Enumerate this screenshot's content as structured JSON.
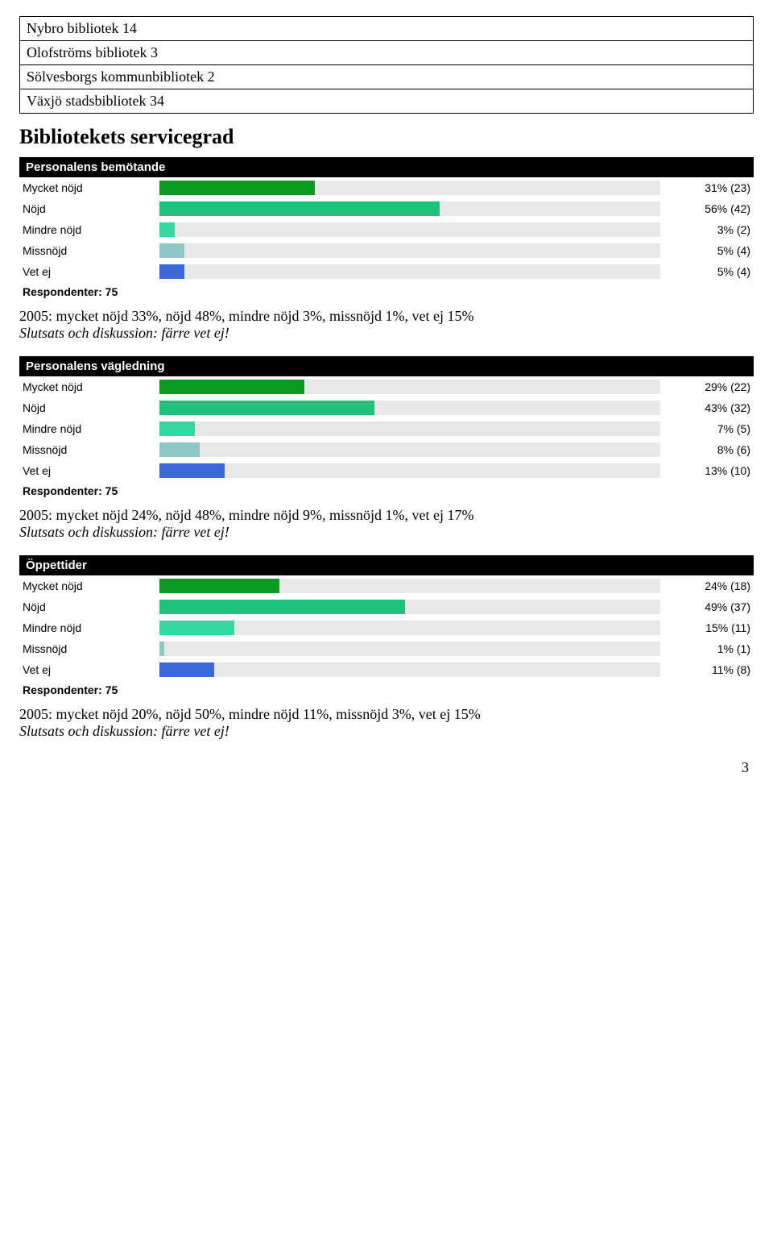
{
  "libraries": [
    {
      "name": "Nybro bibliotek",
      "count": 14
    },
    {
      "name": "Olofströms bibliotek",
      "count": 3
    },
    {
      "name": "Sölvesborgs kommunbibliotek",
      "count": 2
    },
    {
      "name": "Växjö stadsbibliotek",
      "count": 34
    }
  ],
  "section_heading": "Bibliotekets servicegrad",
  "respondents_label": "Respondenter:",
  "bar_track_color": "#e8e8e8",
  "charts": [
    {
      "id": "bemotande",
      "title": "Personalens bemötande",
      "respondents": 75,
      "rows": [
        {
          "label": "Mycket nöjd",
          "pct": 31,
          "count": 23,
          "color": "#0c9b1e"
        },
        {
          "label": "Nöjd",
          "pct": 56,
          "count": 42,
          "color": "#1fc27a"
        },
        {
          "label": "Mindre nöjd",
          "pct": 3,
          "count": 2,
          "color": "#34d9a1"
        },
        {
          "label": "Missnöjd",
          "pct": 5,
          "count": 4,
          "color": "#8ec9c8"
        },
        {
          "label": "Vet ej",
          "pct": 5,
          "count": 4,
          "color": "#3a68d6"
        }
      ],
      "commentary_line1": "2005: mycket nöjd 33%, nöjd 48%, mindre nöjd 3%, missnöjd 1%, vet ej 15%",
      "commentary_line2": "Slutsats och diskussion: färre vet ej!"
    },
    {
      "id": "vagledning",
      "title": "Personalens vägledning",
      "respondents": 75,
      "rows": [
        {
          "label": "Mycket nöjd",
          "pct": 29,
          "count": 22,
          "color": "#0c9b1e"
        },
        {
          "label": "Nöjd",
          "pct": 43,
          "count": 32,
          "color": "#1fc27a"
        },
        {
          "label": "Mindre nöjd",
          "pct": 7,
          "count": 5,
          "color": "#34d9a1"
        },
        {
          "label": "Missnöjd",
          "pct": 8,
          "count": 6,
          "color": "#8ec9c8"
        },
        {
          "label": "Vet ej",
          "pct": 13,
          "count": 10,
          "color": "#3a68d6"
        }
      ],
      "commentary_line1": "2005: mycket nöjd 24%, nöjd 48%, mindre nöjd 9%, missnöjd 1%, vet ej 17%",
      "commentary_line2": "Slutsats och diskussion: färre vet ej!"
    },
    {
      "id": "oppettider",
      "title": "Öppettider",
      "respondents": 75,
      "rows": [
        {
          "label": "Mycket nöjd",
          "pct": 24,
          "count": 18,
          "color": "#0c9b1e"
        },
        {
          "label": "Nöjd",
          "pct": 49,
          "count": 37,
          "color": "#1fc27a"
        },
        {
          "label": "Mindre nöjd",
          "pct": 15,
          "count": 11,
          "color": "#34d9a1"
        },
        {
          "label": "Missnöjd",
          "pct": 1,
          "count": 1,
          "color": "#8ec9c8"
        },
        {
          "label": "Vet ej",
          "pct": 11,
          "count": 8,
          "color": "#3a68d6"
        }
      ],
      "commentary_line1": "2005: mycket nöjd 20%, nöjd 50%, mindre nöjd 11%, missnöjd 3%, vet ej 15%",
      "commentary_line2": "Slutsats och diskussion: färre vet ej!"
    }
  ],
  "page_number": "3"
}
